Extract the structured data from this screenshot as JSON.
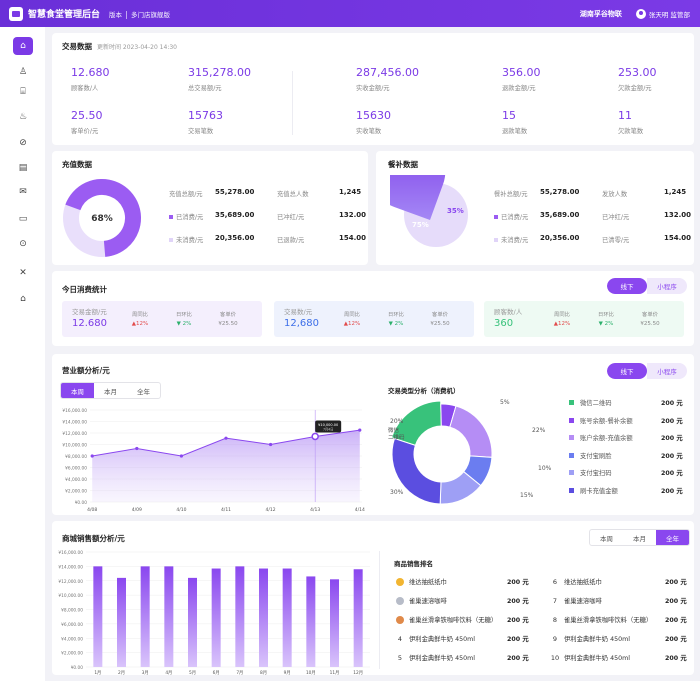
{
  "header": {
    "app_title": "智慧食堂管理后台",
    "version_label": "版本",
    "version_value": "多门店旗舰版",
    "org": "湖南孚谷物联",
    "user": "张天明 监管部"
  },
  "sidebar": {
    "items": [
      {
        "icon": "home-icon",
        "glyph": "⌂"
      },
      {
        "icon": "user-icon",
        "glyph": "♙"
      },
      {
        "icon": "store-icon",
        "glyph": "⌸"
      },
      {
        "icon": "chef-hat-icon",
        "glyph": "♨"
      },
      {
        "icon": "compass-icon",
        "glyph": "⊘"
      },
      {
        "icon": "document-icon",
        "glyph": "▤"
      },
      {
        "icon": "mail-icon",
        "glyph": "✉"
      },
      {
        "icon": "card-icon",
        "glyph": "▭"
      },
      {
        "icon": "search-settings-icon",
        "glyph": "⊙"
      },
      {
        "icon": "tools-icon",
        "glyph": "✕"
      },
      {
        "icon": "shop-icon",
        "glyph": "⌂"
      }
    ]
  },
  "transaction": {
    "title": "交易数据",
    "updated": "更新时间 2023-04-20 14:30",
    "stats": [
      {
        "value": "12.680",
        "label": "顾客数/人"
      },
      {
        "value": "315,278.00",
        "label": "总交易额/元"
      },
      {
        "value": "287,456.00",
        "label": "实收金额/元"
      },
      {
        "value": "356.00",
        "label": "退款金额/元"
      },
      {
        "value": "253.00",
        "label": "欠款金额/元"
      },
      {
        "value": "25.50",
        "label": "客单价/元"
      },
      {
        "value": "15763",
        "label": "交易笔数"
      },
      {
        "value": "15630",
        "label": "实收笔数"
      },
      {
        "value": "15",
        "label": "退款笔数"
      },
      {
        "value": "11",
        "label": "欠款笔数"
      }
    ]
  },
  "recharge": {
    "title": "充值数据",
    "donut_center": "68%",
    "percent": 68,
    "rows": [
      {
        "label": "充值总额/元",
        "value": "55,278.00",
        "label2": "充值总人数",
        "value2": "1,245"
      },
      {
        "label": "已消费/元",
        "value": "35,689.00",
        "label2": "已冲红/元",
        "value2": "132.00"
      },
      {
        "label": "未消费/元",
        "value": "20,356.00",
        "label2": "已退款/元",
        "value2": "154.00"
      }
    ]
  },
  "subsidy": {
    "title": "餐补数据",
    "pct_a": "75%",
    "pct_b": "35%",
    "rows": [
      {
        "label": "餐补总额/元",
        "value": "55,278.00",
        "label2": "发放人数",
        "value2": "1,245"
      },
      {
        "label": "已消费/元",
        "value": "35,689.00",
        "label2": "已冲红/元",
        "value2": "132.00"
      },
      {
        "label": "未消费/元",
        "value": "20,356.00",
        "label2": "已清零/元",
        "value2": "154.00"
      }
    ]
  },
  "today": {
    "title": "今日消费统计",
    "toggle": [
      "线下",
      "小程序"
    ],
    "cards": [
      {
        "title": "交易金额/元",
        "value": "12.680",
        "color": "#7b3ae6",
        "bg": "#f4effd",
        "c1": "周同比",
        "v1": "▲12%",
        "c2": "日环比",
        "v2": "▼ 2%",
        "c3": "客单价",
        "v3": "¥25.50"
      },
      {
        "title": "交易数/元",
        "value": "12,680",
        "color": "#3d6fe8",
        "bg": "#eef2fd",
        "c1": "周同比",
        "v1": "▲12%",
        "c2": "日环比",
        "v2": "▼ 2%",
        "c3": "客单价",
        "v3": "¥25.50"
      },
      {
        "title": "顾客数/人",
        "value": "360",
        "color": "#38c27b",
        "bg": "#eefaf3",
        "c1": "周同比",
        "v1": "▲12%",
        "c2": "日环比",
        "v2": "▼ 2%",
        "c3": "客单价",
        "v3": "¥25.50"
      }
    ]
  },
  "revenue": {
    "title": "营业额分析/元",
    "tabs": [
      "本周",
      "本月",
      "全年"
    ],
    "toggle": [
      "线下",
      "小程序"
    ],
    "tooltip": "¥10,000.00",
    "tooltip_sub": "7月4日",
    "pie_title": "交易类型分析（消费机）"
  },
  "pie_legend": [
    {
      "name": "微信二维码",
      "value": "200 元",
      "color": "#38c27b"
    },
    {
      "name": "账号余额-餐补余额",
      "value": "200 元",
      "color": "#8a47ef"
    },
    {
      "name": "账户余额-充值余额",
      "value": "200 元",
      "color": "#b58df5"
    },
    {
      "name": "支付宝刷脸",
      "value": "200 元",
      "color": "#6b7df0"
    },
    {
      "name": "支付宝扫码",
      "value": "200 元",
      "color": "#9e9ff5"
    },
    {
      "name": "刷卡充值金额",
      "value": "200 元",
      "color": "#5b4ee0"
    }
  ],
  "pie_labels": {
    "p1": "5%",
    "p2": "22%",
    "p3": "10%",
    "p4": "15%",
    "p5": "30%",
    "p6": "20%",
    "p6_name": "微信",
    "p6_name2": "二维码"
  },
  "mall": {
    "title": "商城销售额分析/元",
    "tabs": [
      "本周",
      "本月",
      "全年"
    ],
    "rank_title": "商品销售排名",
    "ranks": [
      {
        "no": "1",
        "name": "维达抽纸纸巾",
        "value": "200 元",
        "medal": "#f2b531"
      },
      {
        "no": "2",
        "name": "雀巢速溶咖啡",
        "value": "200 元",
        "medal": "#b7bcc8"
      },
      {
        "no": "3",
        "name": "雀巢丝滑拿铁咖啡饮料（无糖）",
        "value": "200 元",
        "medal": "#e08a4a"
      },
      {
        "no": "4",
        "name": "伊利金典鲜牛奶 450ml",
        "value": "200 元",
        "medal": ""
      },
      {
        "no": "5",
        "name": "伊利金典鲜牛奶 450ml",
        "value": "200 元",
        "medal": ""
      },
      {
        "no": "6",
        "name": "维达抽纸纸巾",
        "value": "200 元",
        "medal": ""
      },
      {
        "no": "7",
        "name": "雀巢速溶咖啡",
        "value": "200 元",
        "medal": ""
      },
      {
        "no": "8",
        "name": "雀巢丝滑拿铁咖啡饮料（无糖）",
        "value": "200 元",
        "medal": ""
      },
      {
        "no": "9",
        "name": "伊利金典鲜牛奶 450ml",
        "value": "200 元",
        "medal": ""
      },
      {
        "no": "10",
        "name": "伊利金典鲜牛奶 450ml",
        "value": "200 元",
        "medal": ""
      }
    ]
  },
  "chart_data": [
    {
      "type": "area",
      "categories": [
        "4/08",
        "4/09",
        "4/10",
        "4/11",
        "4/12",
        "4/13",
        "4/14"
      ],
      "values": [
        8000,
        9300,
        8000,
        11100,
        10000,
        11400,
        12500
      ],
      "ylim": [
        0,
        16000
      ],
      "yticks": [
        "¥0.00",
        "¥2,000.00",
        "¥4,000.00",
        "¥6,000.00",
        "¥8,000.00",
        "¥10,000.00",
        "¥12,000.00",
        "¥14,000.00",
        "¥16,000.00"
      ]
    },
    {
      "type": "pie",
      "labels": [
        "微信二维码",
        "账号余额-餐补余额",
        "账户余额-充值余额",
        "支付宝刷脸",
        "支付宝扫码",
        "刷卡充值金额"
      ],
      "values": [
        20,
        5,
        22,
        10,
        15,
        30
      ]
    },
    {
      "type": "bar",
      "categories": [
        "1月",
        "2月",
        "3月",
        "4月",
        "5月",
        "6月",
        "7月",
        "8月",
        "9月",
        "10月",
        "11月",
        "12月"
      ],
      "values": [
        14000,
        12400,
        14000,
        14000,
        12400,
        13700,
        14000,
        13700,
        13700,
        12600,
        12200,
        13600
      ],
      "ylim": [
        0,
        16000
      ],
      "yticks": [
        "¥0.00",
        "¥2,000.00",
        "¥4,000.00",
        "¥6,000.00",
        "¥8,000.00",
        "¥10,000.00",
        "¥12,000.00",
        "¥14,000.00",
        "¥16,000.00"
      ]
    }
  ]
}
